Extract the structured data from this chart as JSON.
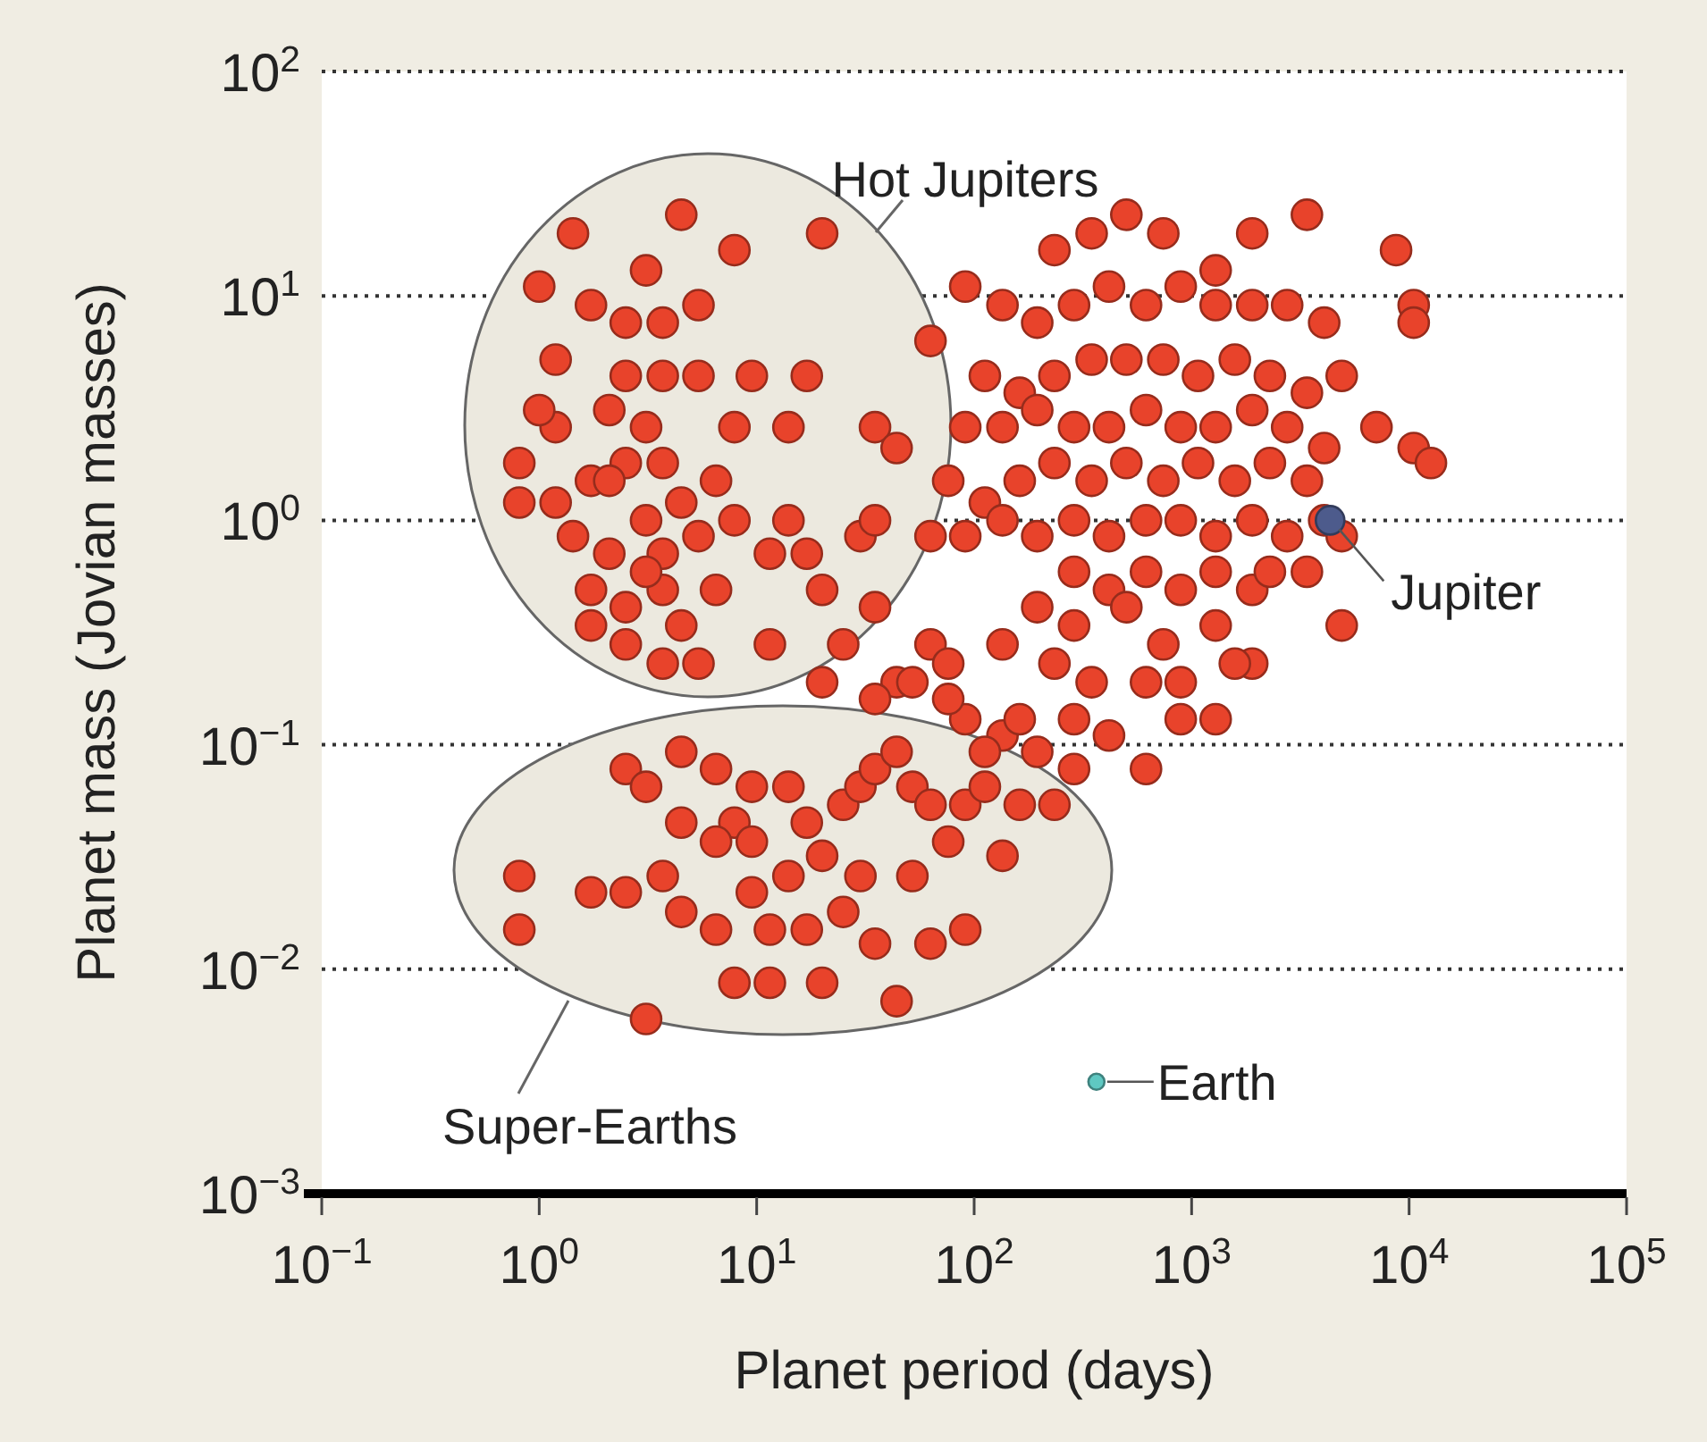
{
  "chart_data": {
    "type": "scatter",
    "xlabel": "Planet period (days)",
    "ylabel": "Planet mass (Jovian masses)",
    "log": "xy",
    "xlim": [
      0.1,
      100000
    ],
    "ylim": [
      0.001,
      100
    ],
    "xticks": [
      {
        "value": 0.1,
        "label": "10$^{−1}$"
      },
      {
        "value": 1,
        "label": "10$^{0}$"
      },
      {
        "value": 10,
        "label": "10$^{1}$"
      },
      {
        "value": 100,
        "label": "10$^{2}$"
      },
      {
        "value": 1000,
        "label": "10$^{3}$"
      },
      {
        "value": 10000,
        "label": "10$^{4}$"
      },
      {
        "value": 100000,
        "label": "10$^{5}$"
      }
    ],
    "yticks": [
      {
        "value": 0.001,
        "label": "10$^{−3}$"
      },
      {
        "value": 0.01,
        "label": "10$^{−2}$"
      },
      {
        "value": 0.1,
        "label": "10$^{−1}$"
      },
      {
        "value": 1,
        "label": "10$^{0}$"
      },
      {
        "value": 10,
        "label": "10$^{1}$"
      },
      {
        "value": 100,
        "label": "10$^{2}$"
      }
    ],
    "grid": "y",
    "marker": "circle",
    "annotations": [
      "Hot Jupiters",
      "Super-Earths"
    ],
    "series": [
      {
        "color": "#e8432b",
        "x": [
          1.43,
          4.5,
          20,
          1,
          3.1,
          7.9,
          1.73,
          2.5,
          3.7,
          5.4,
          1.19,
          2.5,
          3.7,
          5.4,
          9.5,
          17,
          2.1,
          0.81,
          1.19,
          3.1,
          7.9,
          14,
          1.19,
          1.73,
          2.5,
          3.7,
          6.5,
          7.9,
          14,
          1.43,
          2.1,
          3.7,
          5.4,
          1.73,
          2.5,
          3.7,
          6.5,
          11.5,
          17,
          30,
          1.73,
          2.5,
          3.7,
          5.4,
          11.5,
          0.81,
          1,
          35,
          44,
          35,
          20,
          3.1,
          4.5,
          2.1,
          3.1,
          4.5,
          20,
          25,
          35,
          44,
          63,
          52,
          76,
          91,
          35,
          76,
          2.5,
          4.5,
          3.1,
          6.5,
          9.5,
          7.9,
          14,
          17,
          25,
          30,
          35,
          44,
          52,
          63,
          91,
          112,
          162,
          234,
          135,
          0.81,
          0.81,
          1.73,
          2.5,
          3.7,
          4.5,
          6.5,
          7.9,
          9.5,
          11.5,
          14,
          17,
          20,
          25,
          30,
          35,
          44,
          52,
          63,
          91,
          76,
          135,
          3.1,
          20,
          11.5,
          6.5,
          9.5,
          4.5,
          234,
          347,
          501,
          741,
          1290,
          1900,
          3390,
          8710,
          10500,
          10500,
          91,
          135,
          195,
          288,
          417,
          617,
          891,
          1290,
          1900,
          2750,
          4070,
          63,
          112,
          162,
          234,
          347,
          501,
          741,
          1070,
          1580,
          2290,
          3390,
          4900,
          91,
          135,
          195,
          288,
          417,
          617,
          891,
          1290,
          1900,
          2750,
          4070,
          7080,
          10500,
          12600,
          76,
          112,
          162,
          234,
          347,
          501,
          741,
          1070,
          1580,
          2290,
          3390,
          63,
          91,
          135,
          195,
          288,
          417,
          617,
          891,
          1290,
          1900,
          2750,
          4070,
          4900,
          3390,
          4900,
          288,
          417,
          617,
          891,
          1290,
          1900,
          2290,
          195,
          288,
          501,
          741,
          1290,
          1900,
          135,
          234,
          347,
          617,
          891,
          1580,
          162,
          288,
          417,
          617,
          112,
          195,
          288,
          891,
          1290
        ],
        "values": [
          19,
          23,
          19,
          11,
          13,
          16,
          9.1,
          7.6,
          7.6,
          9.1,
          5.2,
          4.4,
          4.4,
          4.4,
          4.4,
          4.4,
          3.1,
          1.8,
          2.6,
          2.6,
          2.6,
          2.6,
          1.2,
          1.5,
          1.8,
          1.8,
          1.5,
          1,
          1,
          0.85,
          0.71,
          0.71,
          0.85,
          0.49,
          0.41,
          0.49,
          0.49,
          0.71,
          0.71,
          0.85,
          0.34,
          0.28,
          0.23,
          0.23,
          0.28,
          1.2,
          3.1,
          2.6,
          2.1,
          1,
          0.49,
          1,
          1.2,
          1.5,
          0.59,
          0.34,
          0.19,
          0.28,
          0.41,
          0.19,
          0.28,
          0.19,
          0.23,
          0.13,
          0.16,
          0.16,
          0.078,
          0.093,
          0.065,
          0.078,
          0.065,
          0.045,
          0.065,
          0.045,
          0.054,
          0.065,
          0.078,
          0.093,
          0.065,
          0.054,
          0.054,
          0.065,
          0.054,
          0.054,
          0.11,
          0.026,
          0.015,
          0.022,
          0.022,
          0.026,
          0.018,
          0.015,
          0.0087,
          0.022,
          0.015,
          0.026,
          0.015,
          0.032,
          0.018,
          0.026,
          0.013,
          0.0072,
          0.026,
          0.013,
          0.015,
          0.037,
          0.032,
          0.006,
          0.0087,
          0.0087,
          0.037,
          0.037,
          0.045,
          16,
          19,
          23,
          19,
          13,
          19,
          23,
          16,
          9.1,
          7.6,
          11,
          9.1,
          7.6,
          9.1,
          11,
          9.1,
          11,
          9.1,
          9.1,
          9.1,
          7.6,
          6.3,
          4.4,
          3.7,
          4.4,
          5.2,
          5.2,
          5.2,
          4.4,
          5.2,
          4.4,
          3.7,
          4.4,
          2.6,
          2.6,
          3.1,
          2.6,
          2.6,
          3.1,
          2.6,
          2.6,
          3.1,
          2.6,
          2.1,
          2.6,
          2.1,
          1.8,
          1.5,
          1.2,
          1.5,
          1.8,
          1.5,
          1.8,
          1.5,
          1.8,
          1.5,
          1.8,
          1.5,
          0.85,
          0.85,
          1,
          0.85,
          1,
          0.85,
          1,
          1,
          0.85,
          1,
          0.85,
          1,
          0.85,
          0.59,
          0.34,
          0.59,
          0.49,
          0.59,
          0.49,
          0.59,
          0.49,
          0.59,
          0.41,
          0.34,
          0.41,
          0.28,
          0.34,
          0.23,
          0.28,
          0.23,
          0.19,
          0.19,
          0.19,
          0.23,
          0.13,
          0.13,
          0.11,
          0.078,
          0.093,
          0.093,
          0.078,
          0.13,
          0.13
        ]
      },
      {
        "name": "Jupiter",
        "color": "#4d5b8c",
        "x": [
          4333
        ],
        "values": [
          1
        ]
      },
      {
        "name": "Earth",
        "color": "#5fc8c2",
        "x": [
          365
        ],
        "values": [
          0.00315
        ]
      }
    ]
  }
}
